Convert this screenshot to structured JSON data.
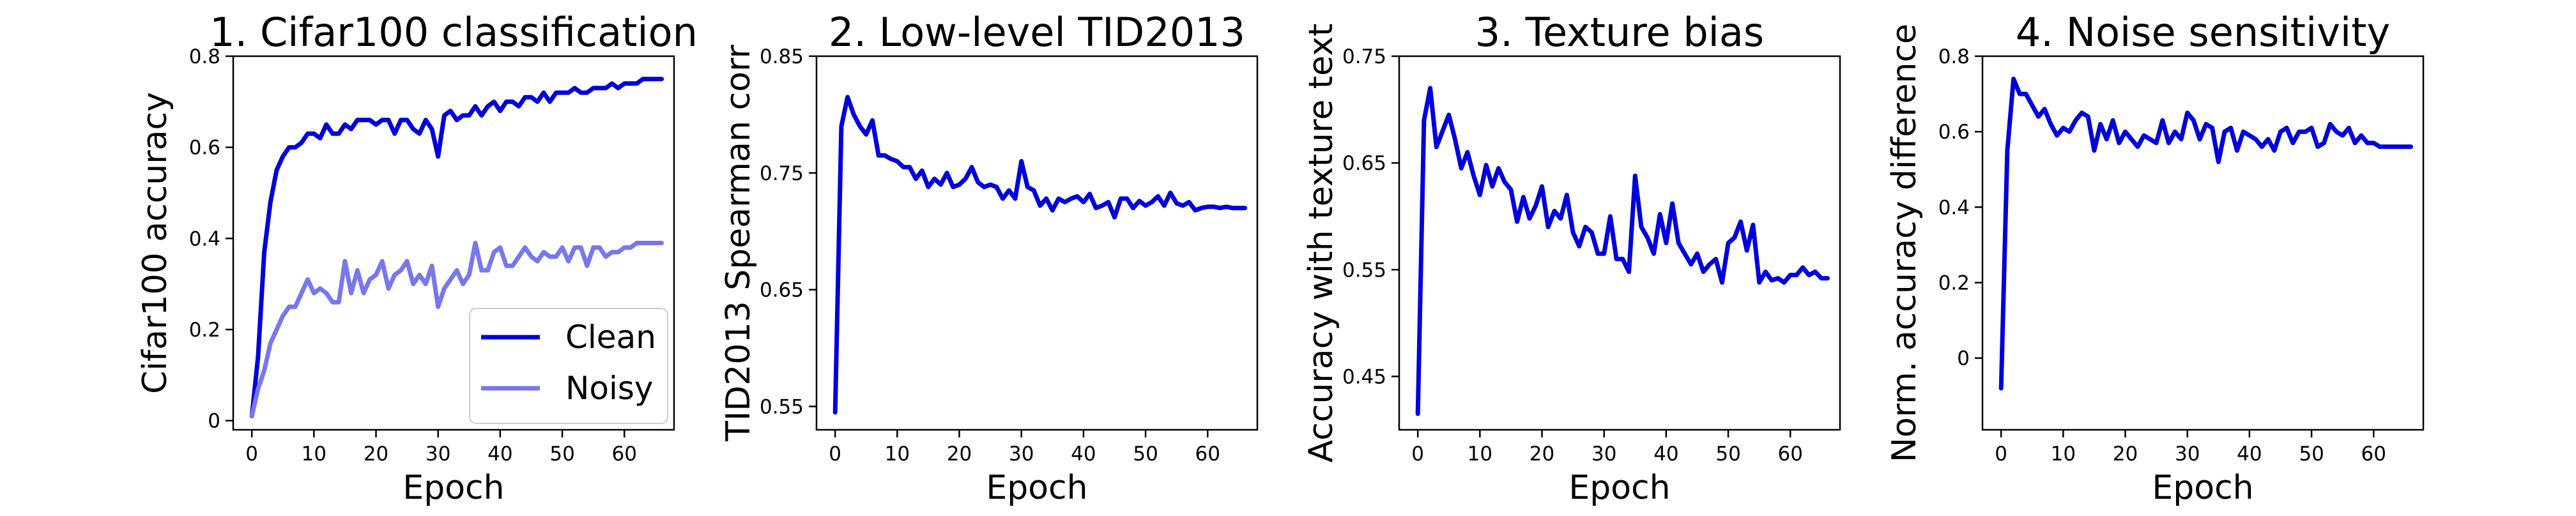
{
  "chart_data": [
    {
      "type": "line",
      "title": "1. Cifar100 classification",
      "xlabel": "Epoch",
      "ylabel": "Cifar100 accuracy",
      "xlim": [
        -3,
        68
      ],
      "ylim": [
        -0.02,
        0.8
      ],
      "xticks": [
        0,
        10,
        20,
        30,
        40,
        50,
        60
      ],
      "yticks": [
        0,
        0.2,
        0.4,
        0.6,
        0.8
      ],
      "ytick_labels": [
        "0",
        "0.2",
        "0.4",
        "0.6",
        "0.8"
      ],
      "grid": false,
      "legend": "lower-right",
      "series": [
        {
          "name": "Clean",
          "color": "#0000dd",
          "x": [
            0,
            1,
            2,
            3,
            4,
            5,
            6,
            7,
            8,
            9,
            10,
            11,
            12,
            13,
            14,
            15,
            16,
            17,
            18,
            19,
            20,
            21,
            22,
            23,
            24,
            25,
            26,
            27,
            28,
            29,
            30,
            31,
            32,
            33,
            34,
            35,
            36,
            37,
            38,
            39,
            40,
            41,
            42,
            43,
            44,
            45,
            46,
            47,
            48,
            49,
            50,
            51,
            52,
            53,
            54,
            55,
            56,
            57,
            58,
            59,
            60,
            61,
            62,
            63,
            64,
            65,
            66
          ],
          "y": [
            0.01,
            0.14,
            0.37,
            0.48,
            0.55,
            0.58,
            0.6,
            0.6,
            0.61,
            0.63,
            0.63,
            0.62,
            0.65,
            0.63,
            0.63,
            0.65,
            0.64,
            0.66,
            0.66,
            0.66,
            0.65,
            0.66,
            0.66,
            0.63,
            0.66,
            0.66,
            0.64,
            0.63,
            0.66,
            0.64,
            0.58,
            0.67,
            0.68,
            0.66,
            0.67,
            0.67,
            0.69,
            0.67,
            0.69,
            0.7,
            0.68,
            0.7,
            0.7,
            0.69,
            0.71,
            0.71,
            0.7,
            0.72,
            0.7,
            0.72,
            0.72,
            0.72,
            0.73,
            0.72,
            0.72,
            0.73,
            0.73,
            0.73,
            0.74,
            0.73,
            0.74,
            0.74,
            0.74,
            0.75,
            0.75,
            0.75,
            0.75
          ]
        },
        {
          "name": "Noisy",
          "color": "#7777ee",
          "x": [
            0,
            1,
            2,
            3,
            4,
            5,
            6,
            7,
            8,
            9,
            10,
            11,
            12,
            13,
            14,
            15,
            16,
            17,
            18,
            19,
            20,
            21,
            22,
            23,
            24,
            25,
            26,
            27,
            28,
            29,
            30,
            31,
            32,
            33,
            34,
            35,
            36,
            37,
            38,
            39,
            40,
            41,
            42,
            43,
            44,
            45,
            46,
            47,
            48,
            49,
            50,
            51,
            52,
            53,
            54,
            55,
            56,
            57,
            58,
            59,
            60,
            61,
            62,
            63,
            64,
            65,
            66
          ],
          "y": [
            0.01,
            0.07,
            0.11,
            0.17,
            0.2,
            0.23,
            0.25,
            0.25,
            0.28,
            0.31,
            0.28,
            0.29,
            0.28,
            0.26,
            0.26,
            0.35,
            0.28,
            0.33,
            0.28,
            0.31,
            0.32,
            0.35,
            0.29,
            0.32,
            0.33,
            0.35,
            0.3,
            0.32,
            0.3,
            0.34,
            0.25,
            0.29,
            0.31,
            0.33,
            0.3,
            0.32,
            0.39,
            0.33,
            0.33,
            0.37,
            0.38,
            0.34,
            0.34,
            0.36,
            0.38,
            0.36,
            0.35,
            0.37,
            0.36,
            0.36,
            0.38,
            0.35,
            0.38,
            0.38,
            0.34,
            0.38,
            0.38,
            0.36,
            0.37,
            0.37,
            0.38,
            0.38,
            0.39,
            0.39,
            0.39,
            0.39,
            0.39
          ]
        }
      ]
    },
    {
      "type": "line",
      "title": "2. Low-level TID2013",
      "xlabel": "Epoch",
      "ylabel": "TID2013 Spearman corr",
      "xlim": [
        -3,
        68
      ],
      "ylim": [
        0.53,
        0.85
      ],
      "xticks": [
        0,
        10,
        20,
        30,
        40,
        50,
        60
      ],
      "yticks": [
        0.55,
        0.65,
        0.75,
        0.85
      ],
      "ytick_labels": [
        "0.55",
        "0.65",
        "0.75",
        "0.85"
      ],
      "grid": false,
      "series": [
        {
          "color": "#0000dd",
          "x": [
            0,
            1,
            2,
            3,
            4,
            5,
            6,
            7,
            8,
            9,
            10,
            11,
            12,
            13,
            14,
            15,
            16,
            17,
            18,
            19,
            20,
            21,
            22,
            23,
            24,
            25,
            26,
            27,
            28,
            29,
            30,
            31,
            32,
            33,
            34,
            35,
            36,
            37,
            38,
            39,
            40,
            41,
            42,
            43,
            44,
            45,
            46,
            47,
            48,
            49,
            50,
            51,
            52,
            53,
            54,
            55,
            56,
            57,
            58,
            59,
            60,
            61,
            62,
            63,
            64,
            65,
            66
          ],
          "y": [
            0.545,
            0.79,
            0.815,
            0.8,
            0.79,
            0.783,
            0.795,
            0.765,
            0.765,
            0.762,
            0.76,
            0.755,
            0.755,
            0.745,
            0.752,
            0.738,
            0.745,
            0.74,
            0.75,
            0.738,
            0.74,
            0.745,
            0.755,
            0.742,
            0.738,
            0.74,
            0.738,
            0.728,
            0.735,
            0.728,
            0.76,
            0.738,
            0.735,
            0.722,
            0.728,
            0.718,
            0.728,
            0.725,
            0.728,
            0.73,
            0.725,
            0.732,
            0.72,
            0.722,
            0.725,
            0.712,
            0.728,
            0.728,
            0.72,
            0.726,
            0.722,
            0.725,
            0.73,
            0.722,
            0.733,
            0.724,
            0.722,
            0.725,
            0.718,
            0.72,
            0.721,
            0.721,
            0.72,
            0.721,
            0.72,
            0.72,
            0.72
          ]
        }
      ]
    },
    {
      "type": "line",
      "title": "3. Texture bias",
      "xlabel": "Epoch",
      "ylabel": "Accuracy with texture text",
      "xlim": [
        -3,
        68
      ],
      "ylim": [
        0.4,
        0.75
      ],
      "xticks": [
        0,
        10,
        20,
        30,
        40,
        50,
        60
      ],
      "yticks": [
        0.45,
        0.55,
        0.65,
        0.75
      ],
      "ytick_labels": [
        "0.45",
        "0.55",
        "0.65",
        "0.75"
      ],
      "grid": false,
      "series": [
        {
          "color": "#0000dd",
          "x": [
            0,
            1,
            2,
            3,
            4,
            5,
            6,
            7,
            8,
            9,
            10,
            11,
            12,
            13,
            14,
            15,
            16,
            17,
            18,
            19,
            20,
            21,
            22,
            23,
            24,
            25,
            26,
            27,
            28,
            29,
            30,
            31,
            32,
            33,
            34,
            35,
            36,
            37,
            38,
            39,
            40,
            41,
            42,
            43,
            44,
            45,
            46,
            47,
            48,
            49,
            50,
            51,
            52,
            53,
            54,
            55,
            56,
            57,
            58,
            59,
            60,
            61,
            62,
            63,
            64,
            65,
            66
          ],
          "y": [
            0.415,
            0.69,
            0.72,
            0.665,
            0.68,
            0.695,
            0.672,
            0.645,
            0.66,
            0.638,
            0.62,
            0.648,
            0.628,
            0.645,
            0.632,
            0.625,
            0.595,
            0.618,
            0.598,
            0.61,
            0.628,
            0.59,
            0.605,
            0.598,
            0.62,
            0.585,
            0.572,
            0.59,
            0.585,
            0.565,
            0.565,
            0.6,
            0.56,
            0.56,
            0.548,
            0.638,
            0.59,
            0.58,
            0.565,
            0.602,
            0.575,
            0.612,
            0.575,
            0.565,
            0.555,
            0.565,
            0.548,
            0.555,
            0.56,
            0.538,
            0.575,
            0.58,
            0.595,
            0.568,
            0.592,
            0.538,
            0.548,
            0.54,
            0.542,
            0.538,
            0.545,
            0.545,
            0.552,
            0.545,
            0.548,
            0.542,
            0.542
          ]
        }
      ]
    },
    {
      "type": "line",
      "title": "4. Noise sensitivity",
      "xlabel": "Epoch",
      "ylabel": "Norm. accuracy difference",
      "xlim": [
        -3,
        68
      ],
      "ylim": [
        -0.19,
        0.8
      ],
      "xticks": [
        0,
        10,
        20,
        30,
        40,
        50,
        60
      ],
      "yticks": [
        0,
        0.2,
        0.4,
        0.6,
        0.8
      ],
      "ytick_labels": [
        "0",
        "0.2",
        "0.4",
        "0.6",
        "0.8"
      ],
      "grid": false,
      "series": [
        {
          "color": "#0000dd",
          "x": [
            0,
            1,
            2,
            3,
            4,
            5,
            6,
            7,
            8,
            9,
            10,
            11,
            12,
            13,
            14,
            15,
            16,
            17,
            18,
            19,
            20,
            21,
            22,
            23,
            24,
            25,
            26,
            27,
            28,
            29,
            30,
            31,
            32,
            33,
            34,
            35,
            36,
            37,
            38,
            39,
            40,
            41,
            42,
            43,
            44,
            45,
            46,
            47,
            48,
            49,
            50,
            51,
            52,
            53,
            54,
            55,
            56,
            57,
            58,
            59,
            60,
            61,
            62,
            63,
            64,
            65,
            66
          ],
          "y": [
            -0.08,
            0.55,
            0.74,
            0.7,
            0.7,
            0.67,
            0.64,
            0.66,
            0.62,
            0.59,
            0.61,
            0.6,
            0.63,
            0.65,
            0.64,
            0.55,
            0.62,
            0.58,
            0.63,
            0.57,
            0.6,
            0.58,
            0.56,
            0.59,
            0.58,
            0.57,
            0.63,
            0.57,
            0.6,
            0.58,
            0.65,
            0.63,
            0.58,
            0.62,
            0.61,
            0.52,
            0.6,
            0.61,
            0.55,
            0.6,
            0.59,
            0.58,
            0.56,
            0.58,
            0.55,
            0.6,
            0.61,
            0.57,
            0.6,
            0.6,
            0.61,
            0.56,
            0.57,
            0.62,
            0.6,
            0.59,
            0.61,
            0.57,
            0.59,
            0.57,
            0.57,
            0.56,
            0.56,
            0.56,
            0.56,
            0.56,
            0.56
          ]
        }
      ]
    }
  ]
}
